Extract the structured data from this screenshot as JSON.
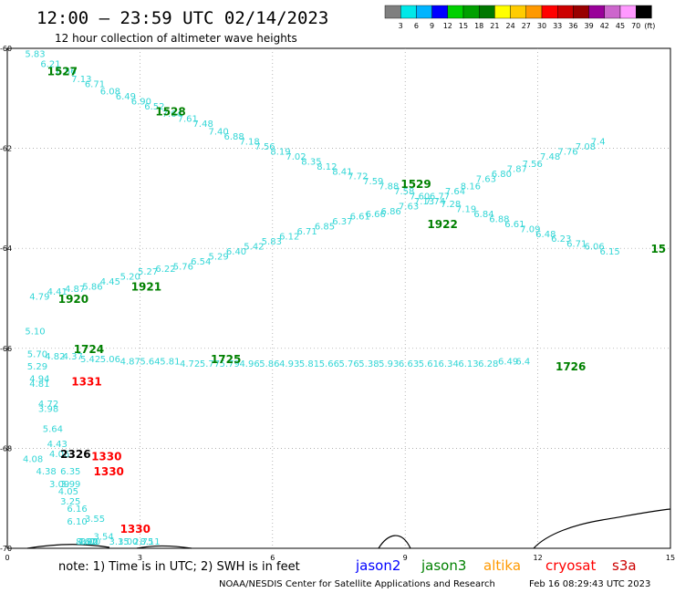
{
  "title": "12:00 – 23:59 UTC 02/14/2023",
  "subtitle": "12 hour collection of altimeter wave heights",
  "legend": {
    "labels": [
      "3",
      "6",
      "9",
      "12",
      "15",
      "18",
      "21",
      "24",
      "27",
      "30",
      "33",
      "36",
      "39",
      "42",
      "45",
      "70",
      "(ft)"
    ],
    "colors": [
      "#7f7f7f",
      "#00e8e8",
      "#00b4ff",
      "#0000ff",
      "#00d000",
      "#00a000",
      "#007800",
      "#ffff00",
      "#ffcc00",
      "#ff9900",
      "#ff0000",
      "#cc0000",
      "#990000",
      "#990099",
      "#cc66cc",
      "#ff99ff",
      "#000000"
    ]
  },
  "note": "note:  1) Time is in UTC; 2) SWH is in feet",
  "satellites": [
    {
      "name": "jason2",
      "color": "#0000ff"
    },
    {
      "name": "jason3",
      "color": "#008000"
    },
    {
      "name": "altika",
      "color": "#ff9900"
    },
    {
      "name": "cryosat",
      "color": "#ff0000"
    },
    {
      "name": "s3a",
      "color": "#cc0000"
    }
  ],
  "credit": "NOAA/NESDIS Center for Satellite Applications and Research",
  "timestamp": "Feb 16 08:29:43 UTC 2023",
  "chart_data": {
    "type": "scatter",
    "xlim": [
      0,
      15
    ],
    "ylim": [
      -70,
      -60
    ],
    "x_ticks": [
      "0",
      "3",
      "6",
      "9",
      "12",
      "15"
    ],
    "y_ticks": [
      "-60",
      "-62",
      "-64",
      "-66",
      "-68",
      "-70"
    ],
    "grid": true,
    "pass_labels": [
      {
        "text": "1527",
        "x": 0.9,
        "y": -60.45,
        "color": "#008000"
      },
      {
        "text": "1528",
        "x": 3.35,
        "y": -61.25,
        "color": "#008000"
      },
      {
        "text": "1529",
        "x": 8.9,
        "y": -62.7,
        "color": "#008000"
      },
      {
        "text": "1922",
        "x": 9.5,
        "y": -63.5,
        "color": "#008000"
      },
      {
        "text": "15",
        "x": 14.9,
        "y": -64.0,
        "color": "#008000"
      },
      {
        "text": "1920",
        "x": 1.15,
        "y": -65.0,
        "color": "#008000"
      },
      {
        "text": "1921",
        "x": 2.8,
        "y": -64.75,
        "color": "#008000"
      },
      {
        "text": "1724",
        "x": 1.5,
        "y": -66.0,
        "color": "#008000"
      },
      {
        "text": "1725",
        "x": 4.6,
        "y": -66.2,
        "color": "#008000"
      },
      {
        "text": "1726",
        "x": 12.4,
        "y": -66.35,
        "color": "#008000"
      },
      {
        "text": "1331",
        "x": 1.45,
        "y": -66.65,
        "color": "#ff0000"
      },
      {
        "text": "2326",
        "x": 1.2,
        "y": -68.1,
        "color": "#000000"
      },
      {
        "text": "1330",
        "x": 1.9,
        "y": -68.15,
        "color": "#ff0000"
      },
      {
        "text": "1330",
        "x": 1.95,
        "y": -68.45,
        "color": "#ff0000"
      },
      {
        "text": "1330",
        "x": 2.55,
        "y": -69.6,
        "color": "#ff0000"
      }
    ],
    "points": [
      {
        "x": 0.4,
        "y": -60.1,
        "v": "5.83"
      },
      {
        "x": 0.75,
        "y": -60.3,
        "v": "6.21"
      },
      {
        "x": 1.1,
        "y": -60.45,
        "v": "6.56"
      },
      {
        "x": 1.45,
        "y": -60.6,
        "v": "7.13"
      },
      {
        "x": 1.75,
        "y": -60.7,
        "v": "6.71"
      },
      {
        "x": 2.1,
        "y": -60.85,
        "v": "6.08"
      },
      {
        "x": 2.45,
        "y": -60.95,
        "v": "6.49"
      },
      {
        "x": 2.8,
        "y": -61.05,
        "v": "6.90"
      },
      {
        "x": 3.1,
        "y": -61.15,
        "v": "6.52"
      },
      {
        "x": 3.5,
        "y": -61.3,
        "v": "7.64"
      },
      {
        "x": 3.85,
        "y": -61.4,
        "v": "7.61"
      },
      {
        "x": 4.2,
        "y": -61.5,
        "v": "7.48"
      },
      {
        "x": 4.55,
        "y": -61.65,
        "v": "7.40"
      },
      {
        "x": 4.9,
        "y": -61.75,
        "v": "6.88"
      },
      {
        "x": 5.25,
        "y": -61.85,
        "v": "7.18"
      },
      {
        "x": 5.6,
        "y": -61.95,
        "v": "7.56"
      },
      {
        "x": 5.95,
        "y": -62.05,
        "v": "8.19"
      },
      {
        "x": 6.3,
        "y": -62.15,
        "v": "7.02"
      },
      {
        "x": 6.65,
        "y": -62.25,
        "v": "8.35"
      },
      {
        "x": 7.0,
        "y": -62.35,
        "v": "8.12"
      },
      {
        "x": 7.35,
        "y": -62.45,
        "v": "8.41"
      },
      {
        "x": 7.7,
        "y": -62.55,
        "v": "7.72"
      },
      {
        "x": 8.05,
        "y": -62.65,
        "v": "7.59"
      },
      {
        "x": 8.4,
        "y": -62.75,
        "v": "7.88"
      },
      {
        "x": 8.75,
        "y": -62.85,
        "v": "7.58"
      },
      {
        "x": 9.1,
        "y": -62.95,
        "v": "7.60"
      },
      {
        "x": 9.45,
        "y": -63.05,
        "v": "7.74"
      },
      {
        "x": 9.8,
        "y": -63.1,
        "v": "7.28"
      },
      {
        "x": 10.15,
        "y": -63.2,
        "v": "7.19"
      },
      {
        "x": 10.55,
        "y": -63.3,
        "v": "6.84"
      },
      {
        "x": 10.9,
        "y": -63.4,
        "v": "6.88"
      },
      {
        "x": 11.25,
        "y": -63.5,
        "v": "6.61"
      },
      {
        "x": 11.6,
        "y": -63.6,
        "v": "7.09"
      },
      {
        "x": 11.95,
        "y": -63.7,
        "v": "6.48"
      },
      {
        "x": 12.3,
        "y": -63.8,
        "v": "6.23"
      },
      {
        "x": 12.65,
        "y": -63.9,
        "v": "6.71"
      },
      {
        "x": 13.05,
        "y": -63.95,
        "v": "6.06"
      },
      {
        "x": 13.4,
        "y": -64.05,
        "v": "6.15"
      },
      {
        "x": 0.5,
        "y": -64.95,
        "v": "4.79"
      },
      {
        "x": 0.9,
        "y": -64.85,
        "v": "4.41"
      },
      {
        "x": 1.3,
        "y": -64.8,
        "v": "4.87"
      },
      {
        "x": 1.7,
        "y": -64.75,
        "v": "5.86"
      },
      {
        "x": 2.1,
        "y": -64.65,
        "v": "4.45"
      },
      {
        "x": 2.55,
        "y": -64.55,
        "v": "5.20"
      },
      {
        "x": 2.95,
        "y": -64.45,
        "v": "5.27"
      },
      {
        "x": 3.35,
        "y": -64.4,
        "v": "6.22"
      },
      {
        "x": 3.75,
        "y": -64.35,
        "v": "5.76"
      },
      {
        "x": 4.15,
        "y": -64.25,
        "v": "6.54"
      },
      {
        "x": 4.55,
        "y": -64.15,
        "v": "5.29"
      },
      {
        "x": 4.95,
        "y": -64.05,
        "v": "6.40"
      },
      {
        "x": 5.35,
        "y": -63.95,
        "v": "5.42"
      },
      {
        "x": 5.75,
        "y": -63.85,
        "v": "5.83"
      },
      {
        "x": 6.15,
        "y": -63.75,
        "v": "6.12"
      },
      {
        "x": 6.55,
        "y": -63.65,
        "v": "6.71"
      },
      {
        "x": 6.95,
        "y": -63.55,
        "v": "6.85"
      },
      {
        "x": 7.35,
        "y": -63.45,
        "v": "6.37"
      },
      {
        "x": 7.75,
        "y": -63.35,
        "v": "6.61"
      },
      {
        "x": 8.1,
        "y": -63.3,
        "v": "6.66"
      },
      {
        "x": 8.45,
        "y": -63.25,
        "v": "6.86"
      },
      {
        "x": 8.85,
        "y": -63.15,
        "v": "7.63"
      },
      {
        "x": 9.2,
        "y": -63.05,
        "v": "7.13"
      },
      {
        "x": 9.55,
        "y": -62.95,
        "v": "6.77"
      },
      {
        "x": 9.9,
        "y": -62.85,
        "v": "7.64"
      },
      {
        "x": 10.25,
        "y": -62.75,
        "v": "8.16"
      },
      {
        "x": 10.6,
        "y": -62.6,
        "v": "7.63"
      },
      {
        "x": 10.95,
        "y": -62.5,
        "v": "6.80"
      },
      {
        "x": 11.3,
        "y": -62.4,
        "v": "7.87"
      },
      {
        "x": 11.65,
        "y": -62.3,
        "v": "7.56"
      },
      {
        "x": 12.05,
        "y": -62.15,
        "v": "7.48"
      },
      {
        "x": 12.45,
        "y": -62.05,
        "v": "7.76"
      },
      {
        "x": 12.85,
        "y": -61.95,
        "v": "7.08"
      },
      {
        "x": 13.2,
        "y": -61.85,
        "v": "7.4"
      },
      {
        "x": 0.4,
        "y": -65.65,
        "v": "5.10"
      },
      {
        "x": 0.45,
        "y": -66.1,
        "v": "5.70"
      },
      {
        "x": 0.85,
        "y": -66.15,
        "v": "4.82"
      },
      {
        "x": 1.25,
        "y": -66.15,
        "v": "4.37"
      },
      {
        "x": 1.65,
        "y": -66.2,
        "v": "5.42"
      },
      {
        "x": 2.1,
        "y": -66.2,
        "v": "5.06"
      },
      {
        "x": 2.55,
        "y": -66.25,
        "v": "4.87"
      },
      {
        "x": 3.0,
        "y": -66.25,
        "v": "5.64"
      },
      {
        "x": 3.45,
        "y": -66.25,
        "v": "5.81"
      },
      {
        "x": 3.9,
        "y": -66.3,
        "v": "4.72"
      },
      {
        "x": 4.35,
        "y": -66.3,
        "v": "5.77"
      },
      {
        "x": 4.8,
        "y": -66.3,
        "v": "5.79"
      },
      {
        "x": 5.25,
        "y": -66.3,
        "v": "4.96"
      },
      {
        "x": 5.7,
        "y": -66.3,
        "v": "5.86"
      },
      {
        "x": 6.15,
        "y": -66.3,
        "v": "4.93"
      },
      {
        "x": 6.6,
        "y": -66.3,
        "v": "5.81"
      },
      {
        "x": 7.05,
        "y": -66.3,
        "v": "5.66"
      },
      {
        "x": 7.5,
        "y": -66.3,
        "v": "5.76"
      },
      {
        "x": 7.95,
        "y": -66.3,
        "v": "5.38"
      },
      {
        "x": 8.4,
        "y": -66.3,
        "v": "5.93"
      },
      {
        "x": 8.85,
        "y": -66.3,
        "v": "6.63"
      },
      {
        "x": 9.3,
        "y": -66.3,
        "v": "5.61"
      },
      {
        "x": 9.75,
        "y": -66.3,
        "v": "6.34"
      },
      {
        "x": 10.2,
        "y": -66.3,
        "v": "6.13"
      },
      {
        "x": 10.65,
        "y": -66.3,
        "v": "6.28"
      },
      {
        "x": 11.1,
        "y": -66.25,
        "v": "6.49"
      },
      {
        "x": 11.5,
        "y": -66.25,
        "v": "6.4"
      },
      {
        "x": 0.45,
        "y": -66.35,
        "v": "5.29"
      },
      {
        "x": 0.5,
        "y": -66.6,
        "v": "4.94"
      },
      {
        "x": 0.5,
        "y": -66.7,
        "v": "4.81"
      },
      {
        "x": 0.7,
        "y": -67.1,
        "v": "4.72"
      },
      {
        "x": 0.7,
        "y": -67.2,
        "v": "3.98"
      },
      {
        "x": 0.8,
        "y": -67.6,
        "v": "5.64"
      },
      {
        "x": 0.9,
        "y": -67.9,
        "v": "4.43"
      },
      {
        "x": 0.95,
        "y": -68.1,
        "v": "4.06"
      },
      {
        "x": 0.35,
        "y": -68.2,
        "v": "4.08"
      },
      {
        "x": 0.65,
        "y": -68.45,
        "v": "4.38"
      },
      {
        "x": 1.2,
        "y": -68.45,
        "v": "6.35"
      },
      {
        "x": 0.95,
        "y": -68.7,
        "v": "3.09"
      },
      {
        "x": 1.2,
        "y": -68.7,
        "v": "3.99"
      },
      {
        "x": 1.15,
        "y": -68.85,
        "v": "4.05"
      },
      {
        "x": 1.2,
        "y": -69.05,
        "v": "3.25"
      },
      {
        "x": 1.35,
        "y": -69.2,
        "v": "6.16"
      },
      {
        "x": 1.35,
        "y": -69.45,
        "v": "6.10"
      },
      {
        "x": 1.75,
        "y": -69.4,
        "v": "3.55"
      },
      {
        "x": 1.95,
        "y": -69.75,
        "v": "3.54"
      },
      {
        "x": 1.55,
        "y": -70.1,
        "v": "8.67"
      },
      {
        "x": 2.3,
        "y": -70.1,
        "v": "3.15"
      },
      {
        "x": 1.6,
        "y": -70.4,
        "v": "4.02"
      },
      {
        "x": 1.6,
        "y": -70.75,
        "v": "7.90"
      },
      {
        "x": 1.65,
        "y": -70.8,
        "v": "3.00"
      },
      {
        "x": 2.85,
        "y": -70.75,
        "v": "2.75"
      },
      {
        "x": 3.0,
        "y": -71.0,
        "v": "8.11"
      },
      {
        "x": 2.5,
        "y": -70.45,
        "v": "3.00"
      }
    ]
  }
}
